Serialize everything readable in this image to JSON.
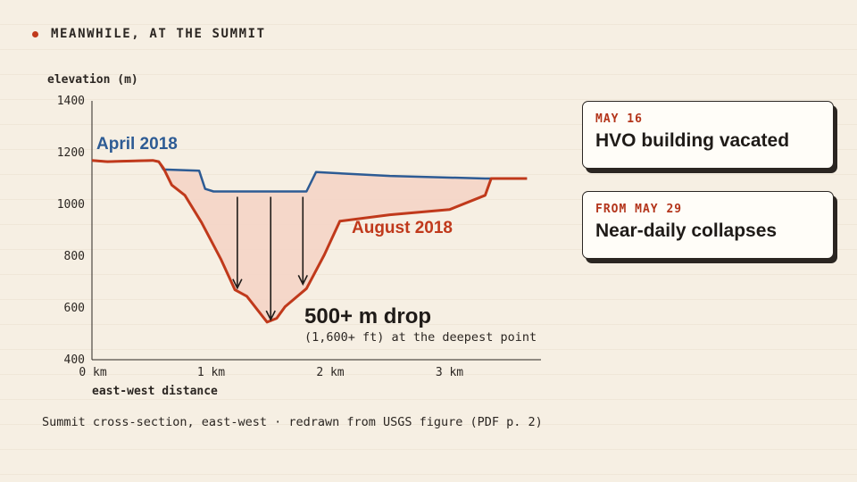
{
  "header": {
    "label": "MEANWHILE, AT THE SUMMIT"
  },
  "caption": "Summit cross-section, east-west · redrawn from USGS figure (PDF p. 2)",
  "colors": {
    "april": "#2d5b94",
    "august": "#c0391b",
    "fill": "#f5d2c4",
    "text": "#2b2622",
    "accent": "#c0391b"
  },
  "events": [
    {
      "date": "MAY 16",
      "title": "HVO building vacated"
    },
    {
      "date": "FROM MAY 29",
      "title": "Near-daily collapses"
    }
  ],
  "chart_data": {
    "type": "line",
    "ylabel": "elevation (m)",
    "xlabel": "east-west distance",
    "xlim": [
      0,
      3.8
    ],
    "ylim": [
      400,
      1400
    ],
    "xticks": [
      0,
      1,
      2,
      3
    ],
    "xtick_labels": [
      "0 km",
      "1 km",
      "2 km",
      "3 km"
    ],
    "yticks": [
      400,
      600,
      800,
      1000,
      1200,
      1400
    ],
    "ytick_labels": [
      "400",
      "600",
      "800",
      "1000",
      "1200",
      "1400"
    ],
    "grid": false,
    "series": [
      {
        "name": "April 2018",
        "x": [
          0,
          0.13,
          0.51,
          0.56,
          0.6,
          0.9,
          0.95,
          1.02,
          1.8,
          1.88,
          2.5,
          3.3,
          3.65
        ],
        "y": [
          1170,
          1165,
          1170,
          1165,
          1135,
          1130,
          1060,
          1050,
          1050,
          1125,
          1110,
          1100,
          1100
        ]
      },
      {
        "name": "August 2018",
        "x": [
          0,
          0.13,
          0.51,
          0.56,
          0.6,
          0.67,
          0.78,
          0.92,
          1.08,
          1.2,
          1.3,
          1.47,
          1.55,
          1.62,
          1.8,
          1.95,
          2.08,
          2.5,
          3.0,
          3.3,
          3.35,
          3.65
        ],
        "y": [
          1170,
          1165,
          1170,
          1165,
          1140,
          1075,
          1035,
          930,
          790,
          670,
          645,
          545,
          560,
          605,
          675,
          805,
          935,
          960,
          980,
          1035,
          1100,
          1100
        ]
      }
    ],
    "arrows": [
      {
        "x": 1.22,
        "from": 1050,
        "to": 670
      },
      {
        "x": 1.5,
        "from": 1050,
        "to": 548
      },
      {
        "x": 1.77,
        "from": 1050,
        "to": 685
      }
    ],
    "annotations": {
      "drop": "500+ m drop",
      "drop_sub": "(1,600+ ft) at the deepest point"
    }
  }
}
